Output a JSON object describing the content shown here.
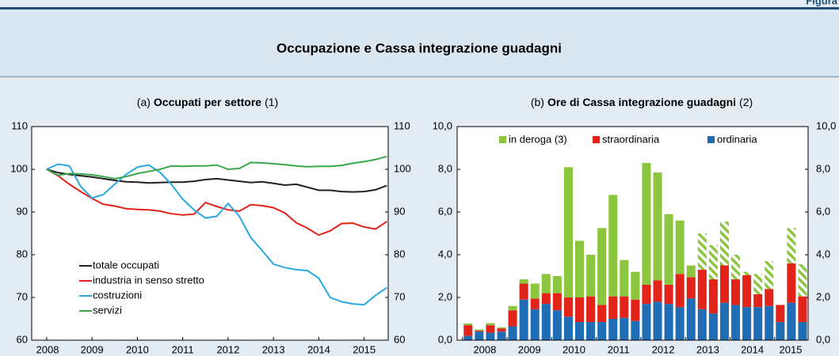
{
  "header": {
    "figure_label": "Figura",
    "title": "Occupazione e Cassa integrazione guadagni"
  },
  "chart_data": [
    {
      "type": "line",
      "label": "(a)",
      "title": "Occupati per settore",
      "note": "(1)",
      "x": [
        2008,
        2008.25,
        2008.5,
        2008.75,
        2009,
        2009.25,
        2009.5,
        2009.75,
        2010,
        2010.25,
        2010.5,
        2010.75,
        2011,
        2011.25,
        2011.5,
        2011.75,
        2012,
        2012.25,
        2012.5,
        2012.75,
        2013,
        2013.25,
        2013.5,
        2013.75,
        2014,
        2014.25,
        2014.5,
        2014.75,
        2015,
        2015.25,
        2015.5
      ],
      "xlim": [
        2007.67,
        2015.53
      ],
      "xticks": [
        2008,
        2009,
        2010,
        2011,
        2012,
        2013,
        2014,
        2015
      ],
      "ylim": [
        60,
        110
      ],
      "yticks": [
        60,
        70,
        80,
        90,
        100,
        110
      ],
      "grid": false,
      "legend": "lower left",
      "series": [
        {
          "name": "totale occupati",
          "color": "#231f20",
          "values": [
            100,
            99.2,
            98.8,
            98.5,
            98.2,
            97.8,
            97.4,
            97.1,
            97,
            96.8,
            96.9,
            97,
            97,
            97.2,
            97.6,
            97.8,
            97.5,
            97.2,
            96.9,
            97.1,
            96.7,
            96.3,
            96.5,
            95.8,
            95.1,
            95.1,
            94.8,
            94.7,
            94.8,
            95.2,
            96.2
          ]
        },
        {
          "name": "industria in senso stretto",
          "color": "#e2231a",
          "values": [
            100,
            98.5,
            96.5,
            94.8,
            93.2,
            91.8,
            91.4,
            90.8,
            90.6,
            90.5,
            90.2,
            89.6,
            89.3,
            89.5,
            92.2,
            91.3,
            90.5,
            90.2,
            91.7,
            91.5,
            91,
            89.8,
            87.5,
            86.2,
            84.6,
            85.6,
            87.3,
            87.4,
            86.5,
            86,
            87.8
          ]
        },
        {
          "name": "costruzioni",
          "color": "#29a8e0",
          "values": [
            100,
            101.2,
            100.8,
            96,
            93.3,
            94.1,
            96.5,
            98.8,
            100.5,
            101,
            99.3,
            96.5,
            93,
            90.5,
            88.6,
            89,
            92,
            89,
            84,
            81,
            77.8,
            77,
            76.5,
            76.3,
            74.5,
            70,
            69,
            68.5,
            68.3,
            70.5,
            72.3
          ]
        },
        {
          "name": "servizi",
          "color": "#3aa84a",
          "values": [
            100,
            98.6,
            99,
            98.9,
            98.7,
            98.3,
            97.8,
            98.3,
            99,
            99.5,
            100,
            100.8,
            100.7,
            100.8,
            100.8,
            101,
            100,
            100.2,
            101.6,
            101.5,
            101.3,
            101.1,
            100.8,
            100.6,
            100.7,
            100.7,
            100.9,
            101.4,
            101.8,
            102.3,
            103
          ]
        }
      ]
    },
    {
      "type": "stacked_bar",
      "label": "(b)",
      "title": "Ore di Cassa integrazione guadagni",
      "note": "(2)",
      "x": [
        2008,
        2008.25,
        2008.5,
        2008.75,
        2009,
        2009.25,
        2009.5,
        2009.75,
        2010,
        2010.25,
        2010.5,
        2010.75,
        2011,
        2011.25,
        2011.5,
        2011.75,
        2012,
        2012.25,
        2012.5,
        2012.75,
        2013,
        2013.25,
        2013.5,
        2013.75,
        2014,
        2014.25,
        2014.5,
        2014.75,
        2015,
        2015.25,
        2015.5
      ],
      "xlim": [
        2007.88,
        2015.75
      ],
      "xticks": [
        2008,
        2009,
        2010,
        2011,
        2012,
        2013,
        2014,
        2015
      ],
      "ylim": [
        0,
        10
      ],
      "yticks": [
        {
          "value": 0,
          "label": "0,0"
        },
        {
          "value": 2,
          "label": "2,0"
        },
        {
          "value": 4,
          "label": "4,0"
        },
        {
          "value": 6,
          "label": "6,0"
        },
        {
          "value": 8,
          "label": "8,0"
        },
        {
          "value": 10,
          "label": "10,0"
        }
      ],
      "grid": false,
      "legend": "upper center",
      "series": [
        {
          "name": "ordinaria",
          "color": "#1f6eb5",
          "values": [
            0.2,
            0.4,
            0.35,
            0.4,
            0.65,
            1.9,
            1.45,
            1.7,
            1.4,
            1.1,
            0.85,
            0.85,
            0.85,
            1.0,
            1.05,
            0.9,
            1.7,
            1.8,
            1.7,
            1.55,
            1.95,
            1.45,
            1.25,
            1.75,
            1.65,
            1.55,
            1.55,
            1.6,
            0.85,
            1.75,
            0.85
          ]
        },
        {
          "name": "straordinaria",
          "color": "#e2231a",
          "values": [
            0.5,
            0.05,
            0.35,
            0.15,
            0.75,
            0.75,
            0.5,
            0.5,
            0.8,
            0.9,
            1.15,
            1.2,
            0.8,
            1.05,
            1.0,
            1.0,
            0.9,
            1.0,
            0.9,
            1.55,
            1.0,
            1.85,
            1.6,
            1.75,
            1.2,
            1.5,
            0.6,
            0.8,
            0.8,
            1.85,
            1.2
          ]
        },
        {
          "name": "in deroga (3)",
          "color": "#8cc63f",
          "values": [
            0.08,
            0.05,
            0.1,
            0.05,
            0.2,
            0.2,
            0.7,
            0.9,
            0.8,
            6.1,
            2.65,
            1.95,
            3.6,
            4.75,
            1.7,
            1.3,
            5.7,
            5.05,
            3.3,
            2.5,
            0.55,
            1.7,
            1.6,
            2.05,
            1.15,
            0.15,
            0.95,
            1.3,
            0,
            1.65,
            1.5
          ],
          "hatched": [
            false,
            false,
            false,
            false,
            false,
            false,
            false,
            false,
            false,
            false,
            false,
            false,
            false,
            false,
            false,
            false,
            false,
            false,
            false,
            false,
            false,
            true,
            true,
            true,
            true,
            true,
            true,
            true,
            false,
            true,
            true
          ]
        }
      ]
    }
  ]
}
